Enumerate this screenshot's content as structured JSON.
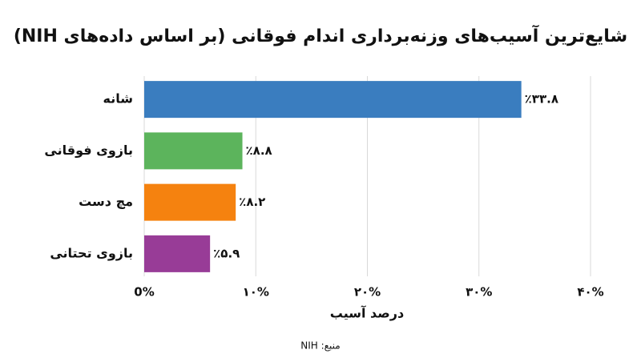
{
  "chart_data": {
    "type": "barh",
    "title": "شایع‌ترین آسیب‌های وزنه‌برداری اندام فوقانی (بر اساس داده‌های NIH)",
    "categories": [
      "شانه",
      "بازوی فوقانی",
      "مچ دست",
      "بازوی تحتانی"
    ],
    "values": [
      33.8,
      8.8,
      8.2,
      5.9
    ],
    "value_labels": [
      "٪۳۳.۸",
      "٪۸.۸",
      "٪۸.۲",
      "٪۵.۹"
    ],
    "colors": [
      "#3a7dbf",
      "#5cb45c",
      "#f5820f",
      "#983c97"
    ],
    "xlim": [
      0,
      40
    ],
    "xticks": [
      {
        "value": 0,
        "label": "0%"
      },
      {
        "value": 10,
        "label": "۱۰%"
      },
      {
        "value": 20,
        "label": "۲۰%"
      },
      {
        "value": 30,
        "label": "۳۰%"
      },
      {
        "value": 40,
        "label": "۴۰%"
      }
    ],
    "xlabel": "درصد آسیب",
    "grid": true,
    "source": "منبع: NIH"
  }
}
